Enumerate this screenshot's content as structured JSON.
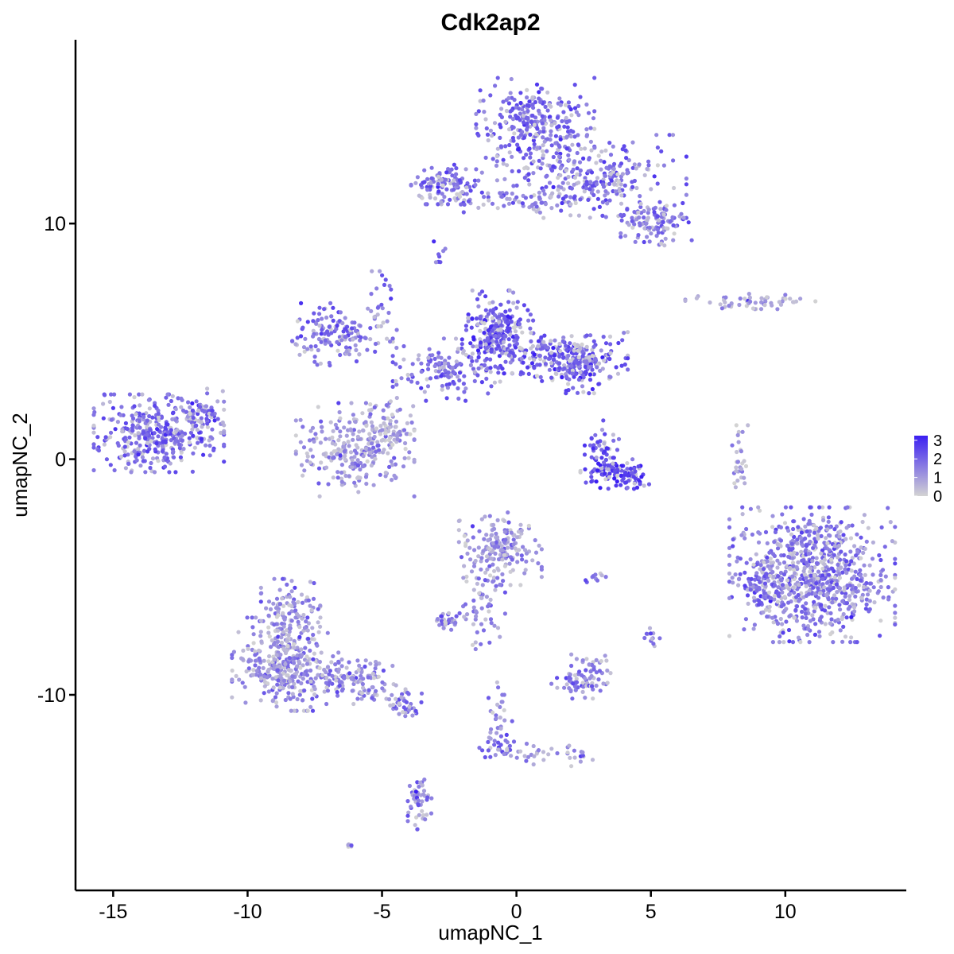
{
  "chart_data": {
    "type": "scatter",
    "title": "Cdk2ap2",
    "xlabel": "umapNC_1",
    "ylabel": "umapNC_2",
    "xlim": [
      -16.4,
      14.5
    ],
    "ylim": [
      -18.3,
      17.8
    ],
    "x_ticks": [
      {
        "value": -15,
        "label": "-15"
      },
      {
        "value": -10,
        "label": "-10"
      },
      {
        "value": -5,
        "label": "-5"
      },
      {
        "value": 0,
        "label": "0"
      },
      {
        "value": 5,
        "label": "5"
      },
      {
        "value": 10,
        "label": "10"
      }
    ],
    "y_ticks": [
      {
        "value": -10,
        "label": "-10"
      },
      {
        "value": 0,
        "label": "0"
      },
      {
        "value": 10,
        "label": "10"
      }
    ],
    "grid": false,
    "legend": {
      "placement": "right",
      "type": "colorbar",
      "low_color": "#d3d3d3",
      "high_color": "#3b1ff2",
      "min": 0,
      "max": 3.25,
      "ticks": [
        {
          "value": 0,
          "label": "0"
        },
        {
          "value": 1,
          "label": "1"
        },
        {
          "value": 2,
          "label": "2"
        },
        {
          "value": 3,
          "label": "3"
        }
      ]
    },
    "clusters": [
      {
        "cx": -13.3,
        "cy": 1.1,
        "sx": 1.1,
        "sy": 0.75,
        "n": 380,
        "expr": 1.9
      },
      {
        "cx": -11.8,
        "cy": 1.9,
        "sx": 0.4,
        "sy": 0.5,
        "n": 60,
        "expr": 2.0
      },
      {
        "cx": 0.7,
        "cy": 14.2,
        "sx": 1.0,
        "sy": 0.9,
        "n": 280,
        "expr": 1.9
      },
      {
        "cx": 2.8,
        "cy": 12.0,
        "sx": 1.6,
        "sy": 0.8,
        "n": 260,
        "expr": 1.8
      },
      {
        "cx": 5.2,
        "cy": 10.0,
        "sx": 0.6,
        "sy": 0.5,
        "n": 110,
        "expr": 1.6
      },
      {
        "cx": -2.6,
        "cy": 11.7,
        "sx": 0.6,
        "sy": 0.4,
        "n": 110,
        "expr": 1.9
      },
      {
        "cx": 0.5,
        "cy": 11.0,
        "sx": 1.6,
        "sy": 0.3,
        "n": 80,
        "expr": 1.6
      },
      {
        "cx": -2.9,
        "cy": 8.8,
        "sx": 0.15,
        "sy": 0.2,
        "n": 8,
        "expr": 1.8
      },
      {
        "cx": -0.7,
        "cy": 5.4,
        "sx": 0.6,
        "sy": 0.8,
        "n": 230,
        "expr": 2.2
      },
      {
        "cx": 1.5,
        "cy": 4.4,
        "sx": 1.2,
        "sy": 0.5,
        "n": 220,
        "expr": 2.1
      },
      {
        "cx": 2.4,
        "cy": 3.9,
        "sx": 0.5,
        "sy": 0.5,
        "n": 90,
        "expr": 2.2
      },
      {
        "cx": -2.4,
        "cy": 3.8,
        "sx": 1.0,
        "sy": 0.6,
        "n": 150,
        "expr": 1.9
      },
      {
        "cx": -6.8,
        "cy": 5.3,
        "sx": 0.7,
        "sy": 0.6,
        "n": 140,
        "expr": 1.7
      },
      {
        "cx": -5.0,
        "cy": 6.0,
        "sx": 0.25,
        "sy": 0.9,
        "n": 30,
        "expr": 1.6
      },
      {
        "cx": -6.0,
        "cy": 0.4,
        "sx": 1.0,
        "sy": 0.9,
        "n": 260,
        "expr": 1.2
      },
      {
        "cx": -4.7,
        "cy": 1.5,
        "sx": 0.4,
        "sy": 0.5,
        "n": 60,
        "expr": 1.3
      },
      {
        "cx": 3.7,
        "cy": -0.6,
        "sx": 0.6,
        "sy": 0.3,
        "n": 120,
        "expr": 2.7
      },
      {
        "cx": 3.2,
        "cy": 0.6,
        "sx": 0.3,
        "sy": 0.5,
        "n": 40,
        "expr": 2.4
      },
      {
        "cx": 11.0,
        "cy": -4.9,
        "sx": 1.4,
        "sy": 1.3,
        "n": 800,
        "expr": 1.7
      },
      {
        "cx": 9.2,
        "cy": -5.4,
        "sx": 0.4,
        "sy": 0.5,
        "n": 70,
        "expr": 1.9
      },
      {
        "cx": 8.7,
        "cy": 6.7,
        "sx": 1.1,
        "sy": 0.15,
        "n": 55,
        "expr": 1.0
      },
      {
        "cx": 8.3,
        "cy": -0.1,
        "sx": 0.15,
        "sy": 0.7,
        "n": 30,
        "expr": 0.9
      },
      {
        "cx": -8.6,
        "cy": -8.7,
        "sx": 0.9,
        "sy": 0.9,
        "n": 360,
        "expr": 1.3
      },
      {
        "cx": -8.4,
        "cy": -6.4,
        "sx": 0.5,
        "sy": 0.6,
        "n": 100,
        "expr": 1.4
      },
      {
        "cx": -5.8,
        "cy": -9.4,
        "sx": 0.9,
        "sy": 0.45,
        "n": 120,
        "expr": 1.4
      },
      {
        "cx": -4.1,
        "cy": -10.5,
        "sx": 0.3,
        "sy": 0.4,
        "n": 40,
        "expr": 1.6
      },
      {
        "cx": -3.6,
        "cy": -14.5,
        "sx": 0.2,
        "sy": 0.55,
        "n": 50,
        "expr": 1.6
      },
      {
        "cx": -0.6,
        "cy": -3.8,
        "sx": 0.7,
        "sy": 0.7,
        "n": 180,
        "expr": 1.2
      },
      {
        "cx": -1.3,
        "cy": -6.3,
        "sx": 0.4,
        "sy": 0.8,
        "n": 60,
        "expr": 1.5
      },
      {
        "cx": -2.6,
        "cy": -6.9,
        "sx": 0.3,
        "sy": 0.25,
        "n": 30,
        "expr": 1.6
      },
      {
        "cx": 2.4,
        "cy": -9.5,
        "sx": 0.5,
        "sy": 0.3,
        "n": 60,
        "expr": 1.7
      },
      {
        "cx": 2.7,
        "cy": -8.7,
        "sx": 0.3,
        "sy": 0.3,
        "n": 20,
        "expr": 1.4
      },
      {
        "cx": 5.0,
        "cy": -7.5,
        "sx": 0.15,
        "sy": 0.2,
        "n": 12,
        "expr": 1.9
      },
      {
        "cx": 3.0,
        "cy": -5.0,
        "sx": 0.3,
        "sy": 0.1,
        "n": 10,
        "expr": 1.6
      },
      {
        "cx": -0.5,
        "cy": -12.2,
        "sx": 0.4,
        "sy": 0.3,
        "n": 30,
        "expr": 1.6
      },
      {
        "cx": -0.6,
        "cy": -10.4,
        "sx": 0.2,
        "sy": 0.7,
        "n": 25,
        "expr": 1.5
      },
      {
        "cx": 1.3,
        "cy": -12.5,
        "sx": 0.9,
        "sy": 0.25,
        "n": 35,
        "expr": 1.2
      },
      {
        "cx": -6.1,
        "cy": -16.4,
        "sx": 0.1,
        "sy": 0.08,
        "n": 5,
        "expr": 1.7
      }
    ]
  }
}
